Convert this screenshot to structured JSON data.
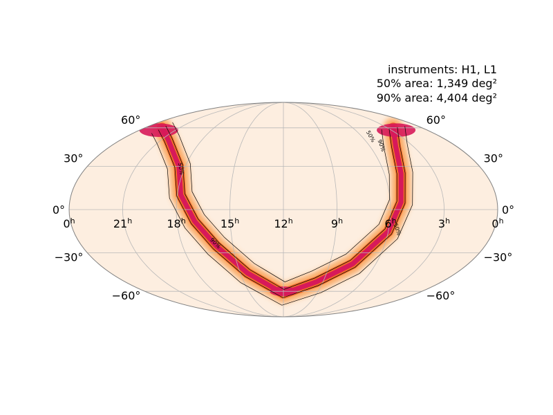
{
  "chart_data": {
    "type": "heatmap",
    "projection": "mollweide",
    "title": "",
    "annotation": {
      "instruments": "instruments: H1, L1",
      "area50": "50% area: 1,349 deg²",
      "area90": "90% area: 4,404 deg²"
    },
    "ra_ticks": [
      {
        "hours": 24,
        "label": "0",
        "sup": "h"
      },
      {
        "hours": 21,
        "label": "21",
        "sup": "h"
      },
      {
        "hours": 18,
        "label": "18",
        "sup": "h"
      },
      {
        "hours": 15,
        "label": "15",
        "sup": "h"
      },
      {
        "hours": 12,
        "label": "12",
        "sup": "h"
      },
      {
        "hours": 9,
        "label": "9",
        "sup": "h"
      },
      {
        "hours": 6,
        "label": "6",
        "sup": "h"
      },
      {
        "hours": 3,
        "label": "3",
        "sup": "h"
      },
      {
        "hours": 0,
        "label": "0",
        "sup": "h"
      }
    ],
    "dec_ticks": [
      {
        "deg": 60,
        "label": "60°"
      },
      {
        "deg": 30,
        "label": "30°"
      },
      {
        "deg": 0,
        "label": "0°"
      },
      {
        "deg": -30,
        "label": "−30°"
      },
      {
        "deg": -60,
        "label": "−60°"
      }
    ],
    "contour_labels": [
      "50%",
      "90%"
    ],
    "colormap": [
      "#fdeee0",
      "#f9a45c",
      "#f06a2a",
      "#d7195a"
    ],
    "band": [
      {
        "ra": 22.5,
        "dec": 60
      },
      {
        "ra": 20.5,
        "dec": 50
      },
      {
        "ra": 18.4,
        "dec": 30
      },
      {
        "ra": 17.8,
        "dec": 10
      },
      {
        "ra": 17.0,
        "dec": -8
      },
      {
        "ra": 16.0,
        "dec": -25
      },
      {
        "ra": 14.5,
        "dec": -45
      },
      {
        "ra": 12.0,
        "dec": -62
      },
      {
        "ra": 9.5,
        "dec": -52
      },
      {
        "ra": 7.5,
        "dec": -38
      },
      {
        "ra": 6.0,
        "dec": -15
      },
      {
        "ra": 5.4,
        "dec": 5
      },
      {
        "ra": 5.0,
        "dec": 25
      },
      {
        "ra": 4.2,
        "dec": 45
      },
      {
        "ra": 2.5,
        "dec": 60
      }
    ]
  }
}
